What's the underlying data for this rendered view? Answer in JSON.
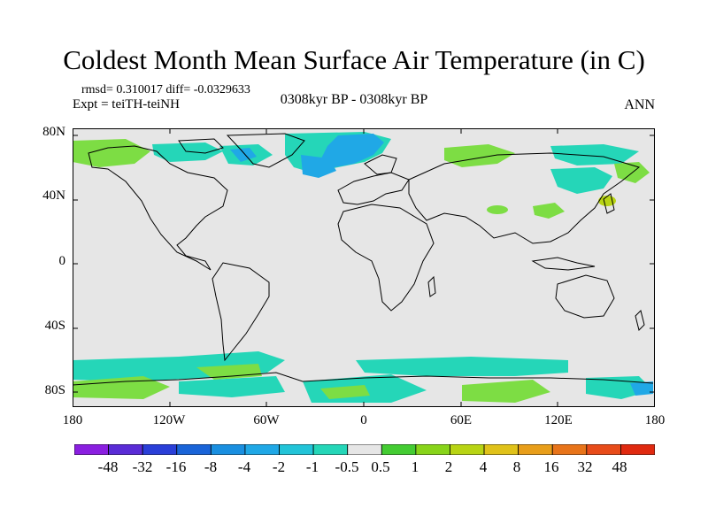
{
  "title": "Coldest Month Mean Surface Air Temperature (in C)",
  "stats": "rmsd= 0.310017  diff= -0.0329633",
  "experiment": "Expt = teiTH-teiNH",
  "period": "0308kyr BP - 0308kyr BP",
  "season": "ANN",
  "lat_labels": [
    "80N",
    "40N",
    "0",
    "40S",
    "80S"
  ],
  "lon_labels": [
    "180",
    "120W",
    "60W",
    "0",
    "60E",
    "120E",
    "180"
  ],
  "colorbar": {
    "labels": [
      "-48",
      "-32",
      "-16",
      "-8",
      "-4",
      "-2",
      "-1",
      "-0.5",
      "0.5",
      "1",
      "2",
      "4",
      "8",
      "16",
      "32",
      "48"
    ],
    "colors": [
      "#8a1fe0",
      "#5a2cd6",
      "#2a3fd8",
      "#1a64d8",
      "#1a8fe0",
      "#20a8e6",
      "#22c4d8",
      "#25d6b8",
      "#e6e6e6",
      "#44cc33",
      "#88d41a",
      "#b8d414",
      "#e0c21a",
      "#e89e1a",
      "#e8741a",
      "#e84c1a",
      "#e02a10"
    ]
  },
  "colors": {
    "neutral": "#e6e6e6",
    "light_green": "#7ddd44",
    "cyan": "#25d6b8",
    "light_blue": "#20a8e6",
    "coastline": "#000000"
  }
}
